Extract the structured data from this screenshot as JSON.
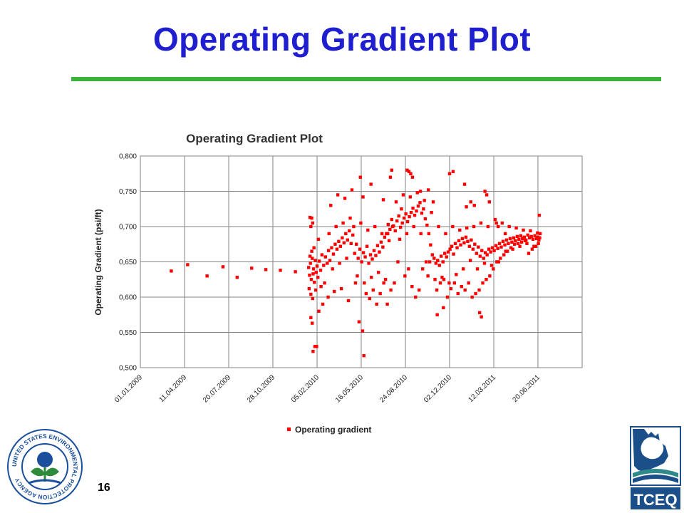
{
  "slide": {
    "title": "Operating Gradient Plot",
    "number": "16"
  },
  "colors": {
    "title": "#1f1fd0",
    "rule": "#3cb43c",
    "series": "#ff0000",
    "grid": "#858585",
    "epa_blue": "#1a4f9c",
    "tceq_blue": "#1b4f8a",
    "tceq_teal": "#2e8a8a"
  },
  "logos": {
    "epa": {
      "icon": "epa-seal-icon",
      "text": "UNITED STATES ENVIRONMENTAL PROTECTION AGENCY"
    },
    "tceq": {
      "icon": "tceq-logo-icon",
      "text": "TCEQ"
    }
  },
  "chart_data": {
    "type": "scatter",
    "title": "Operating Gradient Plot",
    "xlabel": "",
    "ylabel": "Operating Gradient (psi/ft)",
    "x_type": "date",
    "x_ticks": [
      "01.01.2009",
      "11.04.2009",
      "20.07.2009",
      "28.10.2009",
      "05.02.2010",
      "16.05.2010",
      "24.08.2010",
      "02.12.2010",
      "12.03.2011",
      "20.06.2011"
    ],
    "xlim": [
      "2009-01-01",
      "2011-09-28"
    ],
    "y_ticks": [
      "0,500",
      "0,550",
      "0,600",
      "0,650",
      "0,700",
      "0,750",
      "0,800"
    ],
    "ylim": [
      0.5,
      0.8
    ],
    "grid": true,
    "legend_position": "bottom",
    "series": [
      {
        "name": "Operating gradient",
        "marker": "square",
        "color": "#ff0000",
        "x": [
          "2009-03-12",
          "2009-04-18",
          "2009-06-01",
          "2009-07-07",
          "2009-08-08",
          "2009-09-10",
          "2009-10-12",
          "2009-11-14",
          "2009-12-18",
          "2010-01-17",
          "2010-01-19",
          "2010-01-21",
          "2010-01-23",
          "2010-01-25",
          "2010-01-27",
          "2010-01-28",
          "2010-01-30",
          "2010-02-01",
          "2010-02-03",
          "2010-02-05",
          "2010-02-07",
          "2010-02-10",
          "2010-02-13",
          "2010-02-16",
          "2010-02-20",
          "2010-02-24",
          "2010-02-28",
          "2010-03-03",
          "2010-03-06",
          "2010-03-10",
          "2010-03-14",
          "2010-03-18",
          "2010-03-22",
          "2010-03-26",
          "2010-03-30",
          "2010-04-03",
          "2010-04-07",
          "2010-04-11",
          "2010-04-15",
          "2010-04-19",
          "2010-04-23",
          "2010-04-27",
          "2010-05-01",
          "2010-05-05",
          "2010-05-09",
          "2010-05-13",
          "2010-05-17",
          "2010-05-21",
          "2010-05-25",
          "2010-05-29",
          "2010-06-02",
          "2010-06-06",
          "2010-06-10",
          "2010-06-14",
          "2010-06-18",
          "2010-06-22",
          "2010-06-26",
          "2010-06-30",
          "2010-07-04",
          "2010-07-08",
          "2010-07-12",
          "2010-07-16",
          "2010-07-20",
          "2010-07-24",
          "2010-07-28",
          "2010-08-01",
          "2010-08-05",
          "2010-08-09",
          "2010-08-13",
          "2010-08-17",
          "2010-08-21",
          "2010-08-25",
          "2010-08-29",
          "2010-09-02",
          "2010-09-06",
          "2010-09-10",
          "2010-09-14",
          "2010-09-18",
          "2010-09-22",
          "2010-09-26",
          "2010-09-30",
          "2010-10-04",
          "2010-10-08",
          "2010-10-12",
          "2010-10-16",
          "2010-10-20",
          "2010-10-24",
          "2010-10-28",
          "2010-11-01",
          "2010-11-05",
          "2010-11-09",
          "2010-11-13",
          "2010-11-17",
          "2010-11-21",
          "2010-11-25",
          "2010-11-29",
          "2010-12-03",
          "2010-12-07",
          "2010-12-11",
          "2010-12-15",
          "2010-12-19",
          "2010-12-23",
          "2010-12-27",
          "2010-12-31",
          "2011-01-04",
          "2011-01-08",
          "2011-01-12",
          "2011-01-16",
          "2011-01-20",
          "2011-01-24",
          "2011-01-28",
          "2011-02-01",
          "2011-02-05",
          "2011-02-09",
          "2011-02-13",
          "2011-02-17",
          "2011-02-21",
          "2011-02-25",
          "2011-03-01",
          "2011-03-05",
          "2011-03-09",
          "2011-03-13",
          "2011-03-17",
          "2011-03-21",
          "2011-03-25",
          "2011-03-29",
          "2011-04-02",
          "2011-04-06",
          "2011-04-10",
          "2011-04-14",
          "2011-04-18",
          "2011-04-22",
          "2011-04-26",
          "2011-04-30",
          "2011-05-04",
          "2011-05-08",
          "2011-05-12",
          "2011-05-16",
          "2011-05-20",
          "2011-05-24",
          "2011-05-28",
          "2011-06-01",
          "2011-06-05",
          "2011-06-09",
          "2011-06-13",
          "2011-06-17",
          "2011-06-20",
          "2011-06-22",
          "2011-06-24",
          "2010-01-18",
          "2010-01-20",
          "2010-01-22",
          "2010-01-24",
          "2010-01-26",
          "2010-01-29",
          "2010-02-02",
          "2010-02-08",
          "2010-02-14",
          "2010-02-22",
          "2010-03-04",
          "2010-03-12",
          "2010-03-20",
          "2010-03-28",
          "2010-04-05",
          "2010-04-13",
          "2010-04-21",
          "2010-04-29",
          "2010-05-07",
          "2010-05-15",
          "2010-05-23",
          "2010-05-31",
          "2010-06-08",
          "2010-06-16",
          "2010-06-24",
          "2010-07-02",
          "2010-07-10",
          "2010-07-18",
          "2010-07-26",
          "2010-08-03",
          "2010-08-11",
          "2010-08-19",
          "2010-08-27",
          "2010-09-04",
          "2010-09-12",
          "2010-09-20",
          "2010-09-28",
          "2010-10-06",
          "2010-10-14",
          "2010-10-22",
          "2010-10-30",
          "2010-11-07",
          "2010-11-15",
          "2010-11-23",
          "2010-12-01",
          "2010-12-09",
          "2010-12-17",
          "2010-12-25",
          "2011-01-02",
          "2011-01-10",
          "2011-01-18",
          "2011-01-26",
          "2011-02-03",
          "2011-02-11",
          "2011-02-19",
          "2011-02-27",
          "2011-03-07",
          "2011-03-15",
          "2011-03-23",
          "2011-03-31",
          "2011-04-08",
          "2011-04-16",
          "2011-04-24",
          "2011-05-02",
          "2011-05-10",
          "2011-05-18",
          "2011-05-26",
          "2011-06-03",
          "2011-06-11",
          "2011-06-19",
          "2010-01-22",
          "2010-01-25",
          "2010-01-31",
          "2010-02-09",
          "2010-02-18",
          "2010-03-02",
          "2010-03-16",
          "2010-04-01",
          "2010-04-17",
          "2010-05-03",
          "2010-05-11",
          "2010-05-19",
          "2010-05-27",
          "2010-06-04",
          "2010-06-12",
          "2010-06-20",
          "2010-06-28",
          "2010-07-06",
          "2010-07-14",
          "2010-07-22",
          "2010-07-30",
          "2010-08-07",
          "2010-08-15",
          "2010-08-23",
          "2010-08-31",
          "2010-09-08",
          "2010-09-16",
          "2010-09-24",
          "2010-10-02",
          "2010-10-10",
          "2010-10-18",
          "2010-10-26",
          "2010-11-03",
          "2010-11-11",
          "2010-11-19",
          "2010-11-27",
          "2010-12-05",
          "2010-12-13",
          "2010-12-21",
          "2010-12-29",
          "2011-01-06",
          "2011-01-14",
          "2011-01-22",
          "2011-01-30",
          "2011-02-07",
          "2011-02-15",
          "2011-02-23",
          "2011-03-03",
          "2011-03-11",
          "2011-03-19",
          "2011-03-27",
          "2011-04-04",
          "2011-04-12",
          "2011-04-20",
          "2011-04-28",
          "2011-05-06",
          "2011-05-14",
          "2011-05-22",
          "2011-05-30",
          "2011-06-07",
          "2011-06-15",
          "2011-06-21",
          "2010-01-20",
          "2010-01-24",
          "2010-01-26",
          "2010-01-22",
          "2010-01-27",
          "2010-02-04",
          "2010-03-08",
          "2010-03-24",
          "2010-04-09",
          "2010-04-25",
          "2010-05-14",
          "2010-05-20",
          "2010-05-22",
          "2010-06-07",
          "2010-07-05",
          "2010-07-15",
          "2010-07-21",
          "2010-07-24",
          "2010-08-28",
          "2010-09-01",
          "2010-09-05",
          "2010-09-09",
          "2010-09-27",
          "2010-10-15",
          "2010-11-04",
          "2010-11-18",
          "2010-12-02",
          "2010-12-10",
          "2011-01-05",
          "2011-01-09",
          "2011-01-19",
          "2011-01-27",
          "2011-02-08",
          "2011-02-12",
          "2011-02-20",
          "2011-02-24",
          "2011-03-02",
          "2011-03-18",
          "2011-03-22",
          "2011-04-07",
          "2011-06-23",
          "2011-06-25"
        ],
        "y": [
          0.637,
          0.646,
          0.63,
          0.643,
          0.628,
          0.641,
          0.639,
          0.638,
          0.636,
          0.642,
          0.631,
          0.648,
          0.625,
          0.655,
          0.633,
          0.64,
          0.621,
          0.652,
          0.635,
          0.644,
          0.628,
          0.651,
          0.638,
          0.66,
          0.645,
          0.657,
          0.648,
          0.666,
          0.652,
          0.67,
          0.661,
          0.675,
          0.668,
          0.679,
          0.672,
          0.684,
          0.677,
          0.69,
          0.681,
          0.694,
          0.676,
          0.688,
          0.662,
          0.675,
          0.655,
          0.668,
          0.65,
          0.663,
          0.657,
          0.672,
          0.648,
          0.66,
          0.654,
          0.666,
          0.659,
          0.673,
          0.664,
          0.678,
          0.671,
          0.685,
          0.69,
          0.703,
          0.696,
          0.71,
          0.701,
          0.694,
          0.708,
          0.715,
          0.699,
          0.705,
          0.712,
          0.718,
          0.707,
          0.714,
          0.72,
          0.726,
          0.716,
          0.722,
          0.729,
          0.734,
          0.719,
          0.725,
          0.711,
          0.702,
          0.69,
          0.674,
          0.66,
          0.655,
          0.648,
          0.652,
          0.645,
          0.658,
          0.65,
          0.662,
          0.657,
          0.664,
          0.668,
          0.672,
          0.661,
          0.676,
          0.67,
          0.68,
          0.674,
          0.683,
          0.677,
          0.685,
          0.679,
          0.672,
          0.681,
          0.668,
          0.675,
          0.662,
          0.671,
          0.658,
          0.666,
          0.655,
          0.663,
          0.66,
          0.668,
          0.664,
          0.67,
          0.666,
          0.673,
          0.669,
          0.676,
          0.671,
          0.679,
          0.674,
          0.681,
          0.676,
          0.683,
          0.678,
          0.684,
          0.68,
          0.686,
          0.682,
          0.687,
          0.683,
          0.685,
          0.681,
          0.688,
          0.684,
          0.686,
          0.682,
          0.687,
          0.683,
          0.685,
          0.681,
          0.684,
          0.612,
          0.658,
          0.604,
          0.665,
          0.598,
          0.67,
          0.61,
          0.682,
          0.615,
          0.62,
          0.69,
          0.64,
          0.7,
          0.648,
          0.705,
          0.655,
          0.712,
          0.7,
          0.63,
          0.705,
          0.62,
          0.695,
          0.628,
          0.7,
          0.635,
          0.69,
          0.625,
          0.68,
          0.7,
          0.735,
          0.682,
          0.745,
          0.69,
          0.742,
          0.7,
          0.748,
          0.69,
          0.737,
          0.63,
          0.72,
          0.625,
          0.7,
          0.628,
          0.69,
          0.62,
          0.7,
          0.632,
          0.695,
          0.64,
          0.698,
          0.652,
          0.7,
          0.64,
          0.705,
          0.648,
          0.7,
          0.645,
          0.71,
          0.65,
          0.705,
          0.665,
          0.7,
          0.668,
          0.698,
          0.672,
          0.695,
          0.676,
          0.694,
          0.672,
          0.691,
          0.571,
          0.563,
          0.53,
          0.58,
          0.59,
          0.6,
          0.608,
          0.612,
          0.595,
          0.62,
          0.565,
          0.552,
          0.605,
          0.598,
          0.61,
          0.59,
          0.605,
          0.62,
          0.59,
          0.61,
          0.62,
          0.65,
          0.725,
          0.63,
          0.64,
          0.615,
          0.6,
          0.61,
          0.64,
          0.65,
          0.65,
          0.735,
          0.61,
          0.62,
          0.625,
          0.6,
          0.612,
          0.62,
          0.605,
          0.615,
          0.61,
          0.62,
          0.6,
          0.605,
          0.61,
          0.62,
          0.625,
          0.63,
          0.64,
          0.65,
          0.655,
          0.66,
          0.665,
          0.67,
          0.675,
          0.676,
          0.678,
          0.68,
          0.662,
          0.668,
          0.672,
          0.676,
          0.713,
          0.712,
          0.705,
          0.7,
          0.523,
          0.53,
          0.73,
          0.745,
          0.74,
          0.752,
          0.77,
          0.742,
          0.517,
          0.76,
          0.738,
          0.69,
          0.77,
          0.78,
          0.78,
          0.778,
          0.775,
          0.77,
          0.75,
          0.752,
          0.575,
          0.585,
          0.775,
          0.778,
          0.76,
          0.728,
          0.735,
          0.73,
          0.578,
          0.572,
          0.75,
          0.745,
          0.735,
          0.705,
          0.7,
          0.69,
          0.716,
          0.69
        ]
      }
    ]
  }
}
